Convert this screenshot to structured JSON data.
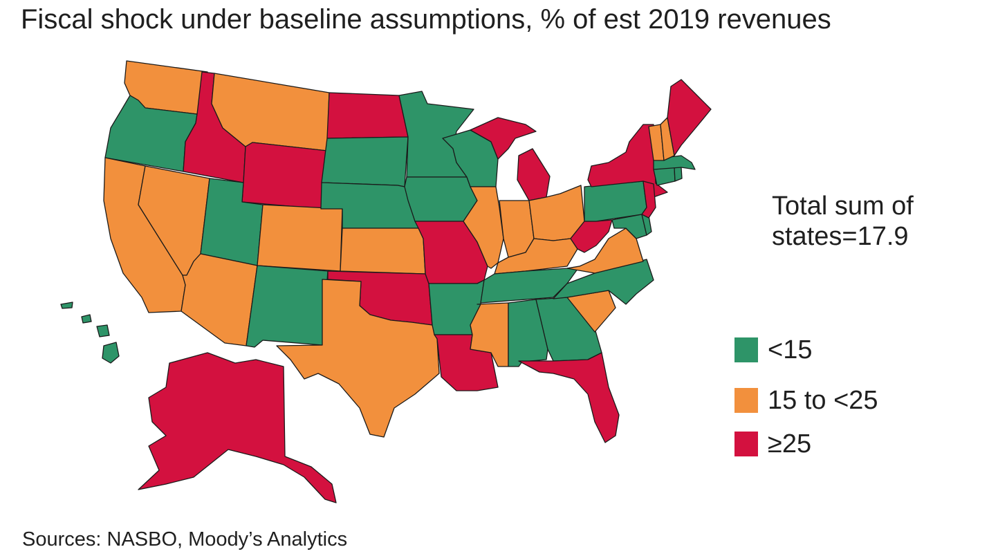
{
  "title": "Fiscal shock under baseline assumptions, % of est 2019 revenues",
  "note": [
    "Total sum of",
    "states=17.9"
  ],
  "source": "Sources: NASBO, Moody’s Analytics",
  "legend": [
    {
      "key": "low",
      "label": "<15",
      "color": "#2e9468"
    },
    {
      "key": "mid",
      "label": "15 to <25",
      "color": "#f2903d"
    },
    {
      "key": "high",
      "label": "≥25",
      "color": "#d3113f"
    }
  ],
  "states": [
    {
      "name": "Washington",
      "category": "mid"
    },
    {
      "name": "Oregon",
      "category": "low"
    },
    {
      "name": "California",
      "category": "mid"
    },
    {
      "name": "Nevada",
      "category": "mid"
    },
    {
      "name": "Idaho",
      "category": "high"
    },
    {
      "name": "Montana",
      "category": "mid"
    },
    {
      "name": "Wyoming",
      "category": "high"
    },
    {
      "name": "Utah",
      "category": "low"
    },
    {
      "name": "Arizona",
      "category": "mid"
    },
    {
      "name": "Colorado",
      "category": "mid"
    },
    {
      "name": "New Mexico",
      "category": "low"
    },
    {
      "name": "North Dakota",
      "category": "high"
    },
    {
      "name": "South Dakota",
      "category": "low"
    },
    {
      "name": "Nebraska",
      "category": "low"
    },
    {
      "name": "Kansas",
      "category": "mid"
    },
    {
      "name": "Oklahoma",
      "category": "high"
    },
    {
      "name": "Texas",
      "category": "mid"
    },
    {
      "name": "Minnesota",
      "category": "low"
    },
    {
      "name": "Iowa",
      "category": "low"
    },
    {
      "name": "Missouri",
      "category": "high"
    },
    {
      "name": "Arkansas",
      "category": "low"
    },
    {
      "name": "Louisiana",
      "category": "high"
    },
    {
      "name": "Wisconsin",
      "category": "low"
    },
    {
      "name": "Illinois",
      "category": "mid"
    },
    {
      "name": "Michigan",
      "category": "high"
    },
    {
      "name": "Indiana",
      "category": "mid"
    },
    {
      "name": "Ohio",
      "category": "mid"
    },
    {
      "name": "Kentucky",
      "category": "mid"
    },
    {
      "name": "Tennessee",
      "category": "low"
    },
    {
      "name": "Mississippi",
      "category": "mid"
    },
    {
      "name": "Alabama",
      "category": "low"
    },
    {
      "name": "Georgia",
      "category": "low"
    },
    {
      "name": "Florida",
      "category": "high"
    },
    {
      "name": "South Carolina",
      "category": "mid"
    },
    {
      "name": "North Carolina",
      "category": "low"
    },
    {
      "name": "Virginia",
      "category": "mid"
    },
    {
      "name": "West Virginia",
      "category": "high"
    },
    {
      "name": "Pennsylvania",
      "category": "low"
    },
    {
      "name": "New York",
      "category": "high"
    },
    {
      "name": "Maryland",
      "category": "low"
    },
    {
      "name": "Delaware",
      "category": "low"
    },
    {
      "name": "New Jersey",
      "category": "high"
    },
    {
      "name": "Connecticut",
      "category": "low"
    },
    {
      "name": "Rhode Island",
      "category": "low"
    },
    {
      "name": "Massachusetts",
      "category": "low"
    },
    {
      "name": "Vermont",
      "category": "mid"
    },
    {
      "name": "New Hampshire",
      "category": "mid"
    },
    {
      "name": "Maine",
      "category": "high"
    },
    {
      "name": "Alaska",
      "category": "high"
    },
    {
      "name": "Hawaii",
      "category": "low"
    }
  ]
}
